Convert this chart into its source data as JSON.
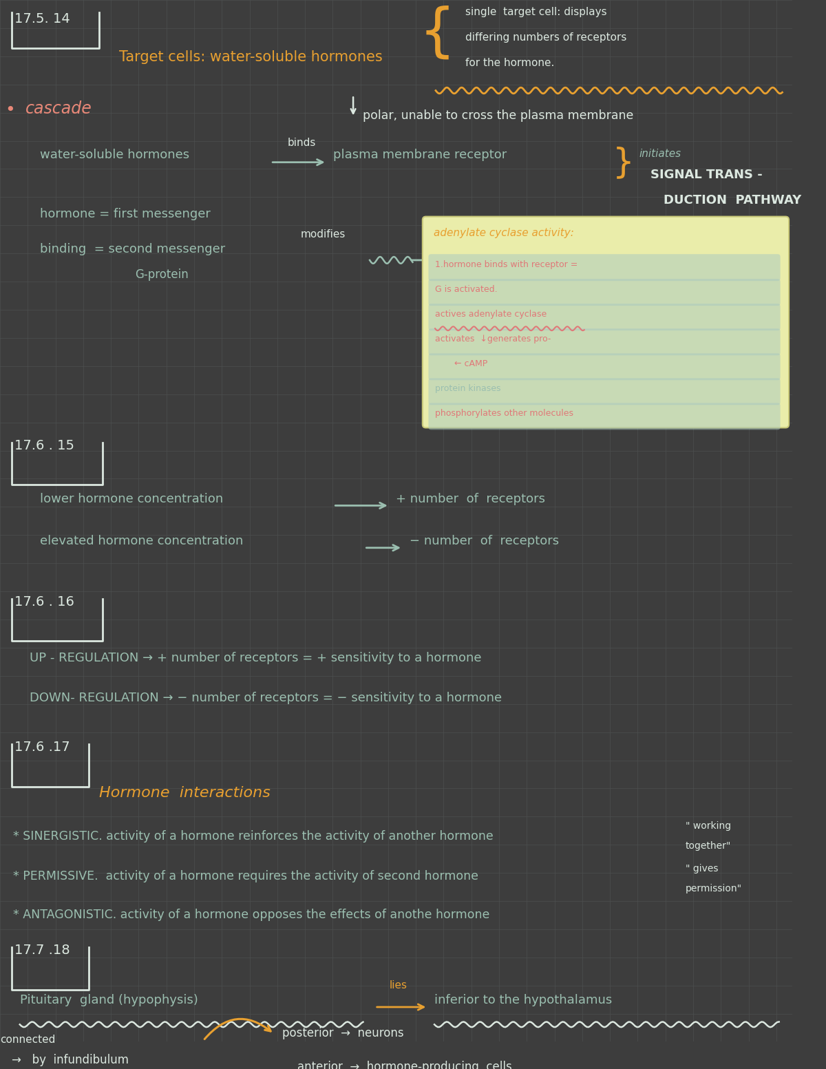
{
  "bg_color": "#3d3d3d",
  "grid_color": "#4d5050",
  "white": "#dce8e0",
  "orange": "#e8a030",
  "salmon": "#e88878",
  "teal": "#9bbfb0",
  "yellow_bg": "#eaedaa",
  "pink_text": "#e07878",
  "light_teal_bg": "#a8c8c0",
  "title": "17.5. 14",
  "subtitle": "Target cells: water-soluble hormones",
  "note_top_line1": "single  target cell: displays",
  "note_top_line2": "differing numbers of receptors",
  "note_top_line3": "for the hormone.",
  "section2": "17.6 . 15",
  "section3": "17.6 . 16",
  "section4": "17.6 .17",
  "section5": "17.7 .18",
  "adenylate_title": "adenylate cyclase activity:"
}
